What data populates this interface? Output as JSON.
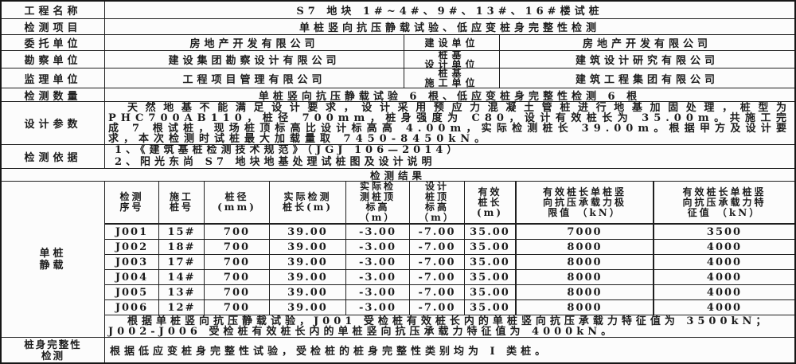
{
  "colors": {
    "ink": "#1c1c1c",
    "paper": "#fcfcfc",
    "border": "#1f1f1f"
  },
  "document": {
    "project_row": {
      "label": "工程名称",
      "value": "S7 地块 1#~4#、9#、13#、16#楼试桩"
    },
    "item_row": {
      "label": "检测项目",
      "value": "单桩竖向抗压静载试验、低应变桩身完整性检测"
    },
    "unit_rows": [
      {
        "label": "委托单位",
        "value": "房地产开发有限公司",
        "label2": "建设单位",
        "value2": "房地产开发有限公司"
      },
      {
        "label": "勘察单位",
        "value": "建设集团勘察设计有限公司",
        "label2": "桩基\n设计单位",
        "value2": "建筑设计研究有限公司"
      },
      {
        "label": "监理单位",
        "value": "工程项目管理有限公司",
        "label2": "桩基\n施工单位",
        "value2": "建筑工程集团有限公司"
      }
    ],
    "quantity_row": {
      "label": "检测数量",
      "value": "单桩竖向抗压静载试验 6 根、低应变桩身完整性检测 6 根"
    },
    "design_row": {
      "label": "设计参数",
      "value": "天然地基不能满足设计要求，设计采用预应力混凝土管桩进行地基加固处理，桩型为 PHC700AB110，桩径 700mm，桩身强度为 C80，设计有效桩长为 35.00m。共施工完成 7 根试桩，现场桩顶标高比设计标高高 4.00m，实际检测桩长 39.00m。根据甲方及设计要求，本次检测时试桩最大加载量取 7450-8450kN。"
    },
    "basis_row": {
      "label": "检测依据",
      "line1": "1、《建筑基桩检测技术规范》（JGJ 106—2014）",
      "line2": "2、阳光东尚 S7 地块地基处理试桩图及设计说明"
    },
    "results_title": "检测结果",
    "static_load": {
      "label": "单桩\n静载",
      "headers": [
        "检测\n序号",
        "施工\n桩号",
        "桩径\n(mm)",
        "实际检测\n桩长(m)",
        "实际检\n测桩顶\n标高\n（m）",
        "设计\n桩顶\n标高\n（m）",
        "有效\n桩长\n(m)",
        "有效桩长单桩竖\n向抗压承载力极\n限值 （kN）",
        "有效桩长单桩竖\n向抗压承载力特\n征值 （kN）"
      ],
      "rows": [
        [
          "J001",
          "15#",
          "700",
          "39.00",
          "-3.00",
          "-7.00",
          "35.00",
          "7000",
          "3500"
        ],
        [
          "J002",
          "18#",
          "700",
          "39.00",
          "-3.00",
          "-7.00",
          "35.00",
          "8000",
          "4000"
        ],
        [
          "J003",
          "17#",
          "700",
          "39.00",
          "-3.00",
          "-7.00",
          "35.00",
          "8000",
          "4000"
        ],
        [
          "J004",
          "14#",
          "700",
          "39.00",
          "-3.00",
          "-7.00",
          "35.00",
          "8000",
          "4000"
        ],
        [
          "J005",
          "13#",
          "700",
          "39.00",
          "-3.00",
          "-7.00",
          "35.00",
          "8000",
          "4000"
        ],
        [
          "J006",
          "12#",
          "700",
          "39.00",
          "-3.00",
          "-7.00",
          "35.00",
          "8000",
          "4000"
        ]
      ],
      "summary": "根据单桩竖向抗压静载试验，J001 受检桩有效桩长内的单桩竖向抗压承载力特征值为 3500kN；J002-J006 受检桩有效桩长内的单桩竖向抗压承载力特征值为 4000kN。"
    },
    "integrity_row": {
      "label": "桩身完整性\n检测",
      "value": "根据低应变桩身完整性试验，受检桩的桩身完整性类别均为 I 类桩。"
    }
  }
}
